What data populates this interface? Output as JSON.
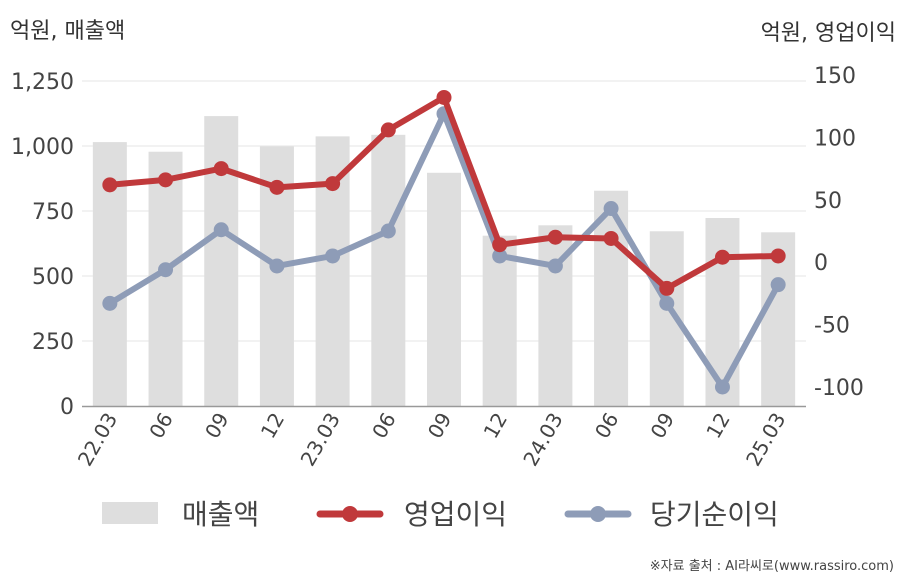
{
  "chart_data": {
    "type": "bar",
    "left_unit_label": "억원, 매출액",
    "right_unit_label": "억원, 영업이익",
    "categories": [
      "22.03",
      "06",
      "09",
      "12",
      "23.03",
      "06",
      "09",
      "12",
      "24.03",
      "06",
      "09",
      "12",
      "25.03"
    ],
    "left_axis": {
      "ylim": [
        0,
        1250
      ],
      "ticks": [
        0,
        250,
        500,
        750,
        1000,
        1250
      ],
      "tick_labels": [
        "0",
        "250",
        "500",
        "750",
        "1,000",
        "1,250"
      ]
    },
    "right_axis": {
      "ylim": [
        -120,
        150
      ],
      "ticks": [
        -100,
        -50,
        0,
        50,
        100,
        150
      ],
      "tick_labels": [
        "-100",
        "-50",
        "0",
        "50",
        "100",
        "150"
      ]
    },
    "series": [
      {
        "name": "매출액",
        "type": "bar",
        "axis": "left",
        "color": "#dedede",
        "values": [
          1015,
          978,
          1115,
          998,
          1037,
          1043,
          897,
          655,
          695,
          828,
          672,
          723,
          668
        ]
      },
      {
        "name": "영업이익",
        "type": "line",
        "axis": "right",
        "color": "#c0393b",
        "values": [
          62,
          66,
          75,
          60,
          63,
          106,
          132,
          14,
          20,
          19,
          -21,
          4,
          5
        ]
      },
      {
        "name": "당기순이익",
        "type": "line",
        "axis": "right",
        "color": "#8e9cb7",
        "values": [
          -33,
          -6,
          26,
          -3,
          5,
          25,
          119,
          5,
          -3,
          43,
          -33,
          -100,
          -18
        ]
      }
    ],
    "grid": true,
    "legend_position": "bottom"
  },
  "source": "※자료 출처 : AI라씨로(www.rassiro.com)"
}
